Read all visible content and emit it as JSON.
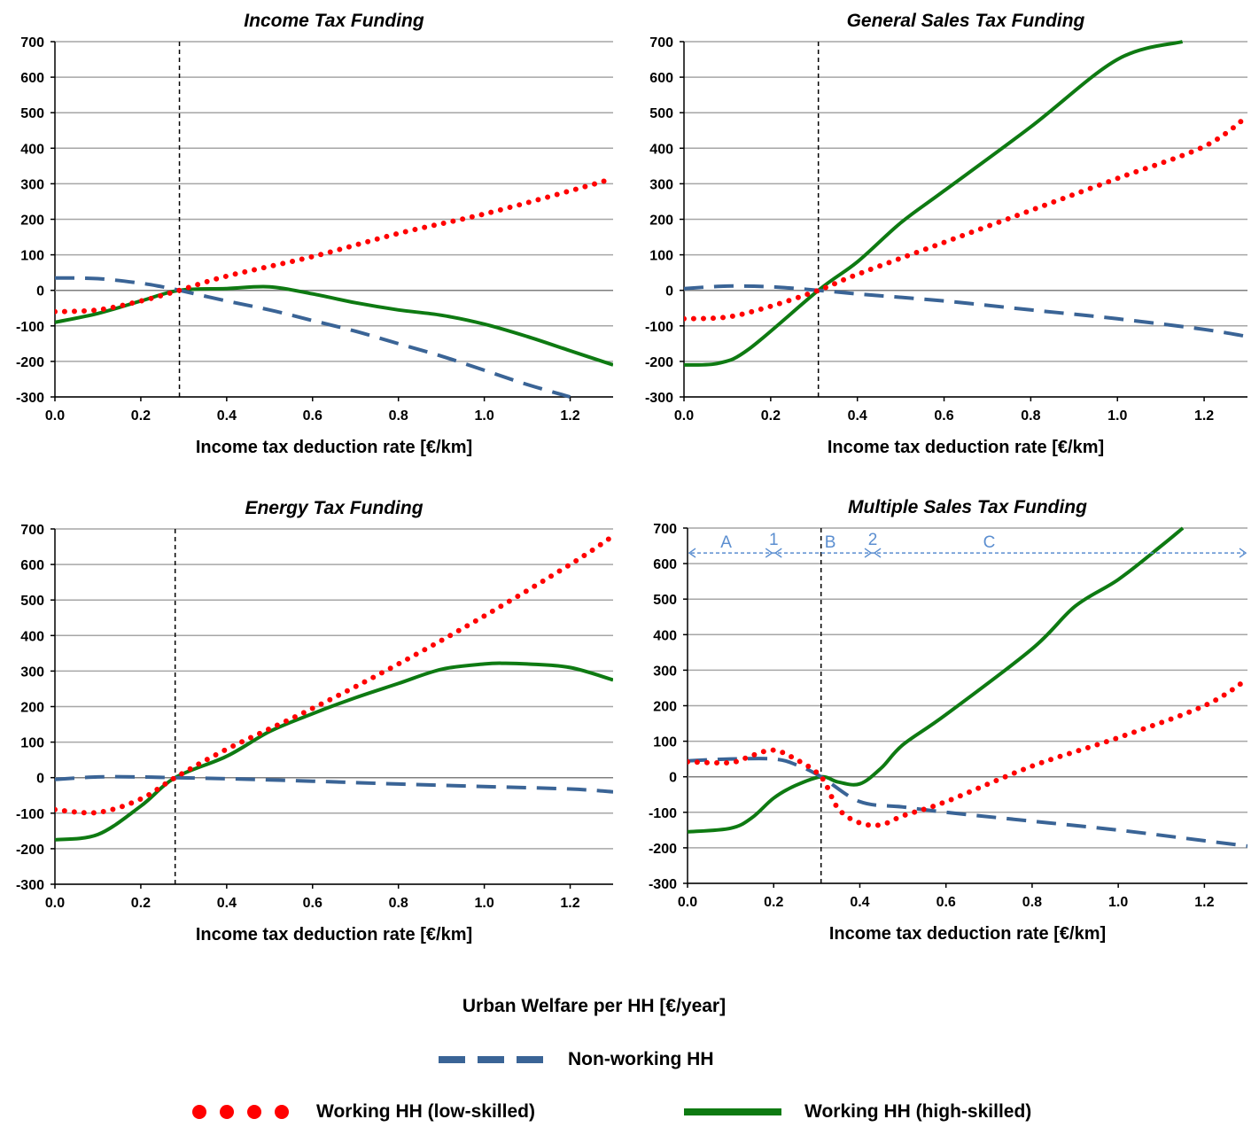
{
  "chart_data": [
    {
      "type": "line",
      "title": "Income Tax Funding",
      "xlabel": "Income tax deduction rate [€/km]",
      "ylabel": "",
      "xlim": [
        0,
        1.3
      ],
      "ylim": [
        -300,
        700
      ],
      "xticks": [
        "0.0",
        "0.2",
        "0.4",
        "0.6",
        "0.8",
        "1.0",
        "1.2"
      ],
      "yticks": [
        "-300",
        "-200",
        "-100",
        "0",
        "100",
        "200",
        "300",
        "400",
        "500",
        "600",
        "700"
      ],
      "grid": true,
      "reference_line_x": 0.29,
      "series": [
        {
          "name": "Non-working HH",
          "x": [
            0,
            0.1,
            0.2,
            0.25,
            0.29,
            0.4,
            0.5,
            0.6,
            0.7,
            0.8,
            0.9,
            1.0,
            1.1,
            1.2
          ],
          "values": [
            35,
            33,
            20,
            10,
            0,
            -30,
            -55,
            -85,
            -115,
            -150,
            -185,
            -225,
            -265,
            -300
          ]
        },
        {
          "name": "Working HH (low-skilled)",
          "x": [
            0,
            0.1,
            0.2,
            0.29,
            0.4,
            0.6,
            0.8,
            1.0,
            1.2,
            1.3
          ],
          "values": [
            -60,
            -55,
            -30,
            0,
            40,
            95,
            160,
            215,
            280,
            315
          ]
        },
        {
          "name": "Working HH (high-skilled)",
          "x": [
            0,
            0.1,
            0.2,
            0.29,
            0.4,
            0.5,
            0.6,
            0.7,
            0.8,
            0.9,
            1.0,
            1.1,
            1.2,
            1.3
          ],
          "values": [
            -90,
            -65,
            -30,
            0,
            5,
            10,
            -10,
            -35,
            -55,
            -70,
            -95,
            -130,
            -170,
            -210
          ]
        }
      ]
    },
    {
      "type": "line",
      "title": "General Sales Tax Funding",
      "xlabel": "Income tax deduction rate [€/km]",
      "ylabel": "",
      "xlim": [
        0,
        1.3
      ],
      "ylim": [
        -300,
        700
      ],
      "xticks": [
        "0.0",
        "0.2",
        "0.4",
        "0.6",
        "0.8",
        "1.0",
        "1.2"
      ],
      "yticks": [
        "-300",
        "-200",
        "-100",
        "0",
        "100",
        "200",
        "300",
        "400",
        "500",
        "600",
        "700"
      ],
      "grid": true,
      "reference_line_x": 0.31,
      "series": [
        {
          "name": "Non-working HH",
          "x": [
            0,
            0.1,
            0.2,
            0.31,
            0.4,
            0.6,
            0.8,
            1.0,
            1.2,
            1.3
          ],
          "values": [
            5,
            12,
            10,
            0,
            -10,
            -30,
            -55,
            -80,
            -110,
            -130
          ]
        },
        {
          "name": "Working HH (low-skilled)",
          "x": [
            0,
            0.1,
            0.2,
            0.31,
            0.4,
            0.6,
            0.8,
            1.0,
            1.2,
            1.3
          ],
          "values": [
            -80,
            -75,
            -45,
            0,
            45,
            135,
            225,
            315,
            405,
            490
          ]
        },
        {
          "name": "Working HH (high-skilled)",
          "x": [
            0,
            0.08,
            0.15,
            0.31,
            0.4,
            0.5,
            0.6,
            0.8,
            1.0,
            1.15
          ],
          "values": [
            -210,
            -205,
            -165,
            0,
            80,
            190,
            280,
            460,
            650,
            700
          ]
        }
      ]
    },
    {
      "type": "line",
      "title": "Energy Tax Funding",
      "xlabel": "Income tax deduction rate [€/km]",
      "ylabel": "",
      "xlim": [
        0,
        1.3
      ],
      "ylim": [
        -300,
        700
      ],
      "xticks": [
        "0.0",
        "0.2",
        "0.4",
        "0.6",
        "0.8",
        "1.0",
        "1.2"
      ],
      "yticks": [
        "-300",
        "-200",
        "-100",
        "0",
        "100",
        "200",
        "300",
        "400",
        "500",
        "600",
        "700"
      ],
      "grid": true,
      "reference_line_x": 0.28,
      "series": [
        {
          "name": "Non-working HH",
          "x": [
            0,
            0.1,
            0.2,
            0.28,
            0.4,
            0.6,
            0.8,
            1.0,
            1.2,
            1.3
          ],
          "values": [
            -5,
            2,
            2,
            0,
            -3,
            -10,
            -18,
            -25,
            -32,
            -40
          ]
        },
        {
          "name": "Working HH (low-skilled)",
          "x": [
            0,
            0.1,
            0.2,
            0.28,
            0.4,
            0.6,
            0.8,
            1.0,
            1.2,
            1.3
          ],
          "values": [
            -90,
            -98,
            -60,
            0,
            80,
            195,
            320,
            455,
            600,
            680
          ]
        },
        {
          "name": "Working HH (high-skilled)",
          "x": [
            0,
            0.1,
            0.2,
            0.28,
            0.4,
            0.5,
            0.6,
            0.7,
            0.8,
            0.9,
            1.0,
            1.05,
            1.1,
            1.2,
            1.3
          ],
          "values": [
            -175,
            -160,
            -80,
            0,
            60,
            130,
            180,
            225,
            265,
            305,
            320,
            322,
            320,
            310,
            275
          ]
        }
      ]
    },
    {
      "type": "line",
      "title": "Multiple Sales Tax Funding",
      "xlabel": "Income tax deduction rate [€/km]",
      "ylabel": "",
      "xlim": [
        0,
        1.3
      ],
      "ylim": [
        -300,
        700
      ],
      "xticks": [
        "0.0",
        "0.2",
        "0.4",
        "0.6",
        "0.8",
        "1.0",
        "1.2"
      ],
      "yticks": [
        "-300",
        "-200",
        "-100",
        "0",
        "100",
        "200",
        "300",
        "400",
        "500",
        "600",
        "700"
      ],
      "grid": true,
      "reference_line_x": 0.31,
      "annotations": {
        "regions": [
          {
            "label": "A",
            "x_from": 0.0,
            "x_to": 0.2
          },
          {
            "label": "B",
            "x_from": 0.2,
            "x_to": 0.43
          },
          {
            "label": "C",
            "x_from": 0.43,
            "x_to": 1.3
          }
        ],
        "markers": [
          {
            "label": "1",
            "x": 0.2
          },
          {
            "label": "2",
            "x": 0.43
          }
        ],
        "arrow_y": 630
      },
      "series": [
        {
          "name": "Non-working HH",
          "x": [
            0,
            0.1,
            0.2,
            0.25,
            0.31,
            0.4,
            0.5,
            0.6,
            0.8,
            1.0,
            1.2,
            1.3
          ],
          "values": [
            45,
            50,
            50,
            35,
            0,
            -70,
            -85,
            -100,
            -125,
            -150,
            -180,
            -195
          ]
        },
        {
          "name": "Working HH (low-skilled)",
          "x": [
            0,
            0.1,
            0.15,
            0.2,
            0.25,
            0.31,
            0.35,
            0.4,
            0.45,
            0.5,
            0.6,
            0.8,
            1.0,
            1.2,
            1.3
          ],
          "values": [
            42,
            40,
            60,
            75,
            50,
            0,
            -90,
            -130,
            -135,
            -110,
            -70,
            30,
            110,
            200,
            275
          ]
        },
        {
          "name": "Working HH (high-skilled)",
          "x": [
            0,
            0.1,
            0.15,
            0.2,
            0.25,
            0.31,
            0.35,
            0.4,
            0.45,
            0.5,
            0.6,
            0.8,
            0.9,
            1.0,
            1.1,
            1.15
          ],
          "values": [
            -155,
            -145,
            -115,
            -60,
            -25,
            0,
            -15,
            -20,
            25,
            90,
            175,
            360,
            480,
            555,
            650,
            700
          ]
        }
      ]
    }
  ],
  "legend": {
    "title": "Urban Welfare per HH [€/year]",
    "items": [
      {
        "key": "nonworking",
        "label": "Non-working HH",
        "color": "#3A6496",
        "style": "dashed"
      },
      {
        "key": "lowskilled",
        "label": "Working HH (low-skilled)",
        "color": "#FF0000",
        "style": "dotted"
      },
      {
        "key": "highskilled",
        "label": "Working HH (high-skilled)",
        "color": "#0E7A12",
        "style": "solid"
      }
    ]
  },
  "colors": {
    "nonworking": "#3A6496",
    "lowskilled": "#FF0000",
    "highskilled": "#0E7A12",
    "grid": "#A6A6A6",
    "annotation": "#5B8ED0"
  }
}
